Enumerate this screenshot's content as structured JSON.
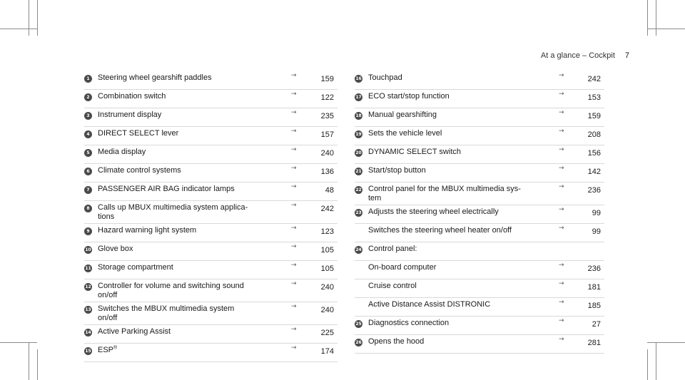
{
  "header": {
    "section": "At a glance – Cockpit",
    "page": "7"
  },
  "arrow_symbol": "→",
  "left_column": [
    {
      "n": "1",
      "label": "Steering wheel gearshift paddles",
      "page": "159"
    },
    {
      "n": "2",
      "label": "Combination switch",
      "page": "122"
    },
    {
      "n": "3",
      "label": "Instrument display",
      "page": "235"
    },
    {
      "n": "4",
      "label": "DIRECT SELECT lever",
      "page": "157"
    },
    {
      "n": "5",
      "label": "Media display",
      "page": "240"
    },
    {
      "n": "6",
      "label": "Climate control systems",
      "page": "136"
    },
    {
      "n": "7",
      "label": "PASSENGER AIR BAG indicator lamps",
      "page": "48"
    },
    {
      "n": "8",
      "label": "Calls up MBUX multimedia system applica-\ntions",
      "page": "242"
    },
    {
      "n": "9",
      "label": "Hazard warning light system",
      "page": "123"
    },
    {
      "n": "10",
      "label": "Glove box",
      "page": "105"
    },
    {
      "n": "11",
      "label": "Storage compartment",
      "page": "105"
    },
    {
      "n": "12",
      "label": "Controller for volume and switching sound\non/off",
      "page": "240"
    },
    {
      "n": "13",
      "label": "Switches the MBUX multimedia system\non/off",
      "page": "240"
    },
    {
      "n": "14",
      "label": "Active Parking Assist",
      "page": "225"
    },
    {
      "n": "15",
      "label": "ESP",
      "sup": "®",
      "page": "174"
    }
  ],
  "right_column": [
    {
      "n": "16",
      "label": "Touchpad",
      "page": "242"
    },
    {
      "n": "17",
      "label": "ECO start/stop function",
      "page": "153"
    },
    {
      "n": "18",
      "label": "Manual gearshifting",
      "page": "159"
    },
    {
      "n": "19",
      "label": "Sets the vehicle level",
      "page": "208"
    },
    {
      "n": "20",
      "label": "DYNAMIC SELECT switch",
      "page": "156"
    },
    {
      "n": "21",
      "label": "Start/stop button",
      "page": "142"
    },
    {
      "n": "22",
      "label": "Control panel for the MBUX multimedia sys-\ntem",
      "page": "236"
    },
    {
      "n": "23",
      "label": "Adjusts the steering wheel electrically",
      "page": "99"
    },
    {
      "n": "",
      "label": "Switches the steering wheel heater on/off",
      "page": "99"
    },
    {
      "n": "24",
      "label": "Control panel:",
      "page": ""
    },
    {
      "n": "",
      "label": "On-board computer",
      "page": "236"
    },
    {
      "n": "",
      "label": "Cruise control",
      "page": "181"
    },
    {
      "n": "",
      "label": "Active Distance Assist DISTRONIC",
      "page": "185"
    },
    {
      "n": "25",
      "label": "Diagnostics connection",
      "page": "27"
    },
    {
      "n": "26",
      "label": "Opens the hood",
      "page": "281"
    }
  ]
}
